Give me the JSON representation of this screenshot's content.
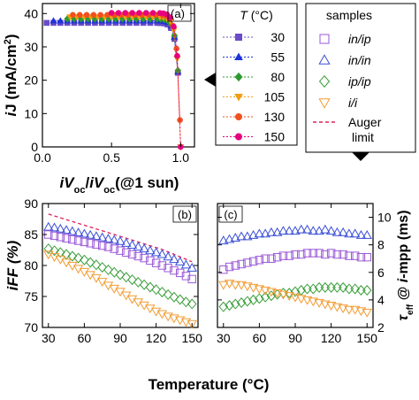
{
  "colors": {
    "t30": "#6a4cc9",
    "t55": "#1f33d6",
    "t80": "#2e9a2e",
    "t105": "#f39c12",
    "t130": "#f0501e",
    "t150": "#e6007e",
    "in_ip": "#9b59d6",
    "in_in": "#3b4fd8",
    "ip_ip": "#3a9e3a",
    "i_i": "#f39c32",
    "auger": "#e0205a"
  },
  "chart_data": [
    {
      "panel": "a",
      "type": "scatter",
      "panel_label": "(a)",
      "xlabel_parts": [
        "i",
        "V",
        "oc",
        "/",
        "i",
        "V",
        "oc",
        "(@1 sun)"
      ],
      "ylabel_parts": [
        "i",
        "J (mA/cm",
        "2",
        ")"
      ],
      "xlim": [
        0,
        1.1
      ],
      "ylim": [
        0,
        43
      ],
      "xticks": [
        "0.0",
        "0.5",
        "1.0"
      ],
      "yticks": [
        "0",
        "10",
        "20",
        "30",
        "40"
      ],
      "legend_title_parts": [
        "T",
        " (°C)"
      ],
      "series": [
        {
          "name": "30",
          "jsc": 37.2,
          "color": "#6a4cc9",
          "marker": "square"
        },
        {
          "name": "55",
          "jsc": 37.8,
          "color": "#1f33d6",
          "marker": "triangle"
        },
        {
          "name": "80",
          "jsc": 38.4,
          "color": "#2e9a2e",
          "marker": "diamond"
        },
        {
          "name": "105",
          "jsc": 39.0,
          "color": "#f39c12",
          "marker": "triangle-down"
        },
        {
          "name": "130",
          "jsc": 39.6,
          "color": "#f0501e",
          "marker": "circle"
        },
        {
          "name": "150",
          "jsc": 40.2,
          "color": "#e6007e",
          "marker": "circle"
        }
      ]
    },
    {
      "panel": "b",
      "type": "scatter",
      "panel_label": "(b)",
      "ylabel": "iFF (%)",
      "xlim": [
        25,
        155
      ],
      "ylim": [
        70,
        90
      ],
      "xticks": [
        "30",
        "60",
        "90",
        "120",
        "150"
      ],
      "yticks": [
        "70",
        "75",
        "80",
        "85",
        "90"
      ],
      "x": [
        30,
        35,
        40,
        45,
        50,
        55,
        60,
        65,
        70,
        75,
        80,
        85,
        90,
        95,
        100,
        105,
        110,
        115,
        120,
        125,
        130,
        135,
        140,
        145,
        150
      ],
      "series": [
        {
          "name": "Auger limit",
          "type": "line",
          "values": [
            88.3,
            88.0,
            87.7,
            87.4,
            87.1,
            86.8,
            86.5,
            86.2,
            85.9,
            85.6,
            85.3,
            85.0,
            84.7,
            84.4,
            84.1,
            83.8,
            83.5,
            83.2,
            82.9,
            82.6,
            82.2,
            81.8,
            81.4,
            81.0,
            80.6
          ]
        },
        {
          "name": "in/in",
          "values": [
            86.2,
            86.1,
            85.9,
            85.7,
            85.5,
            85.3,
            85.1,
            84.9,
            84.7,
            84.5,
            84.3,
            84.1,
            83.9,
            83.6,
            83.3,
            83.0,
            82.7,
            82.4,
            82.1,
            81.8,
            81.4,
            81.0,
            80.6,
            80.1,
            79.6
          ]
        },
        {
          "name": "in/ip",
          "values": [
            85.0,
            84.8,
            84.6,
            84.4,
            84.2,
            84.0,
            83.8,
            83.6,
            83.4,
            83.2,
            83.0,
            82.7,
            82.4,
            82.1,
            81.8,
            81.5,
            81.2,
            80.8,
            80.4,
            80.0,
            79.6,
            79.2,
            78.8,
            78.3,
            77.8
          ]
        },
        {
          "name": "ip/ip",
          "values": [
            82.7,
            82.4,
            82.1,
            81.8,
            81.5,
            81.2,
            80.9,
            80.5,
            80.1,
            79.7,
            79.3,
            78.9,
            78.5,
            78.1,
            77.7,
            77.3,
            76.9,
            76.5,
            76.1,
            75.7,
            75.3,
            74.9,
            74.5,
            74.1,
            73.8
          ]
        },
        {
          "name": "i/i",
          "values": [
            81.8,
            81.4,
            81.0,
            80.5,
            80.0,
            79.5,
            79.0,
            78.5,
            78.0,
            77.4,
            76.8,
            76.3,
            75.8,
            75.2,
            74.6,
            74.1,
            73.6,
            73.1,
            72.6,
            72.2,
            71.8,
            71.5,
            71.2,
            70.9,
            70.6
          ]
        }
      ]
    },
    {
      "panel": "c",
      "type": "scatter",
      "panel_label": "(c)",
      "ylabel_parts": [
        "τ",
        "eff",
        " @ ",
        "i",
        "-mpp (ms)"
      ],
      "xlim": [
        25,
        155
      ],
      "ylim": [
        2,
        11
      ],
      "xticks": [
        "30",
        "60",
        "90",
        "120",
        "150"
      ],
      "yticks": [
        "2",
        "4",
        "6",
        "8",
        "10"
      ],
      "x": [
        30,
        35,
        40,
        45,
        50,
        55,
        60,
        65,
        70,
        75,
        80,
        85,
        90,
        95,
        100,
        105,
        110,
        115,
        120,
        125,
        130,
        135,
        140,
        145,
        150
      ],
      "series": [
        {
          "name": "in/in",
          "values": [
            8.3,
            8.4,
            8.5,
            8.6,
            8.6,
            8.7,
            8.8,
            8.8,
            8.9,
            8.9,
            9.0,
            9.0,
            9.0,
            9.1,
            9.1,
            9.0,
            9.0,
            9.1,
            9.0,
            8.9,
            8.9,
            8.8,
            8.8,
            8.7,
            8.7
          ]
        },
        {
          "name": "in/ip",
          "values": [
            6.2,
            6.4,
            6.5,
            6.6,
            6.7,
            6.8,
            6.9,
            7.0,
            7.0,
            7.1,
            7.2,
            7.2,
            7.3,
            7.3,
            7.4,
            7.4,
            7.4,
            7.3,
            7.4,
            7.3,
            7.3,
            7.2,
            7.2,
            7.1,
            7.1
          ]
        },
        {
          "name": "ip/ip",
          "values": [
            3.5,
            3.6,
            3.7,
            3.8,
            3.9,
            4.0,
            4.1,
            4.2,
            4.3,
            4.4,
            4.5,
            4.5,
            4.6,
            4.7,
            4.8,
            4.8,
            4.9,
            4.9,
            4.9,
            4.9,
            4.9,
            4.8,
            4.8,
            4.7,
            4.7
          ]
        },
        {
          "name": "i/i",
          "values": [
            5.1,
            5.2,
            5.1,
            5.1,
            5.0,
            4.9,
            4.8,
            4.7,
            4.6,
            4.5,
            4.4,
            4.3,
            4.2,
            4.1,
            4.0,
            3.9,
            3.8,
            3.7,
            3.6,
            3.5,
            3.4,
            3.3,
            3.3,
            3.2,
            3.1
          ]
        }
      ]
    }
  ],
  "shared_xlabel": "Temperature (°C)",
  "legend_samples": {
    "title": "samples",
    "entries": [
      {
        "label": "in/ip",
        "color": "#9b59d6",
        "marker": "square"
      },
      {
        "label": "in/in",
        "color": "#3b4fd8",
        "marker": "triangle"
      },
      {
        "label": "ip/ip",
        "color": "#3a9e3a",
        "marker": "diamond"
      },
      {
        "label": "i/i",
        "color": "#f39c32",
        "marker": "triangle-down"
      }
    ],
    "auger_line1": "Auger",
    "auger_line2": "limit"
  }
}
